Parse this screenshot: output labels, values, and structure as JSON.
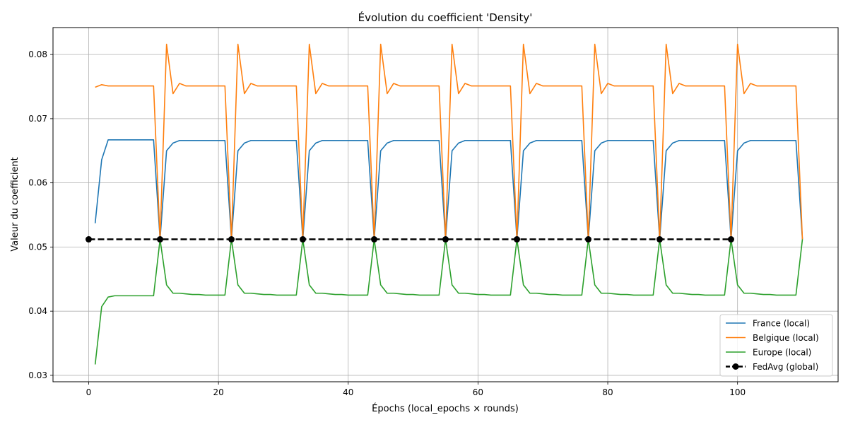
{
  "chart_data": {
    "type": "line",
    "title": "Évolution du coefficient 'Density'",
    "xlabel": "Épochs (local_epochs × rounds)",
    "ylabel": "Valeur du coefficient",
    "xlim": [
      -5.5,
      115.5
    ],
    "ylim": [
      0.029,
      0.0842
    ],
    "xticks": [
      0,
      20,
      40,
      60,
      80,
      100
    ],
    "xtick_labels": [
      "0",
      "20",
      "40",
      "60",
      "80",
      "100"
    ],
    "yticks": [
      0.03,
      0.04,
      0.05,
      0.06,
      0.07,
      0.08
    ],
    "ytick_labels": [
      "0.03",
      "0.04",
      "0.05",
      "0.06",
      "0.07",
      "0.08"
    ],
    "grid": true,
    "legend_position": "lower-right",
    "series": [
      {
        "name": "France (local)",
        "color": "#1f77b4",
        "style": "solid",
        "marker": "none",
        "x": [
          1,
          2,
          3,
          4,
          5,
          6,
          7,
          8,
          9,
          10,
          11,
          12,
          13,
          14,
          15,
          16,
          17,
          18,
          19,
          20,
          21,
          22,
          23,
          24,
          25,
          26,
          27,
          28,
          29,
          30,
          31,
          32,
          33,
          34,
          35,
          36,
          37,
          38,
          39,
          40,
          41,
          42,
          43,
          44,
          45,
          46,
          47,
          48,
          49,
          50,
          51,
          52,
          53,
          54,
          55,
          56,
          57,
          58,
          59,
          60,
          61,
          62,
          63,
          64,
          65,
          66,
          67,
          68,
          69,
          70,
          71,
          72,
          73,
          74,
          75,
          76,
          77,
          78,
          79,
          80,
          81,
          82,
          83,
          84,
          85,
          86,
          87,
          88,
          89,
          90,
          91,
          92,
          93,
          94,
          95,
          96,
          97,
          98,
          99,
          100,
          101,
          102,
          103,
          104,
          105,
          106,
          107,
          108,
          109,
          110
        ],
        "y": [
          0.0537,
          0.0636,
          0.0667,
          0.0667,
          0.0667,
          0.0667,
          0.0667,
          0.0667,
          0.0667,
          0.0667,
          0.0512,
          0.065,
          0.0662,
          0.0666,
          0.0666,
          0.0666,
          0.0666,
          0.0666,
          0.0666,
          0.0666,
          0.0666,
          0.0512,
          0.065,
          0.0662,
          0.0666,
          0.0666,
          0.0666,
          0.0666,
          0.0666,
          0.0666,
          0.0666,
          0.0666,
          0.0512,
          0.065,
          0.0662,
          0.0666,
          0.0666,
          0.0666,
          0.0666,
          0.0666,
          0.0666,
          0.0666,
          0.0666,
          0.0512,
          0.065,
          0.0662,
          0.0666,
          0.0666,
          0.0666,
          0.0666,
          0.0666,
          0.0666,
          0.0666,
          0.0666,
          0.0512,
          0.065,
          0.0662,
          0.0666,
          0.0666,
          0.0666,
          0.0666,
          0.0666,
          0.0666,
          0.0666,
          0.0666,
          0.0512,
          0.065,
          0.0662,
          0.0666,
          0.0666,
          0.0666,
          0.0666,
          0.0666,
          0.0666,
          0.0666,
          0.0666,
          0.0512,
          0.065,
          0.0662,
          0.0666,
          0.0666,
          0.0666,
          0.0666,
          0.0666,
          0.0666,
          0.0666,
          0.0666,
          0.0512,
          0.065,
          0.0662,
          0.0666,
          0.0666,
          0.0666,
          0.0666,
          0.0666,
          0.0666,
          0.0666,
          0.0666,
          0.0512,
          0.065,
          0.0662,
          0.0666,
          0.0666,
          0.0666,
          0.0666,
          0.0666,
          0.0666,
          0.0666,
          0.0666,
          0.0512
        ]
      },
      {
        "name": "Belgique (local)",
        "color": "#ff7f0e",
        "style": "solid",
        "marker": "none",
        "x": [
          1,
          2,
          3,
          4,
          5,
          6,
          7,
          8,
          9,
          10,
          11,
          12,
          13,
          14,
          15,
          16,
          17,
          18,
          19,
          20,
          21,
          22,
          23,
          24,
          25,
          26,
          27,
          28,
          29,
          30,
          31,
          32,
          33,
          34,
          35,
          36,
          37,
          38,
          39,
          40,
          41,
          42,
          43,
          44,
          45,
          46,
          47,
          48,
          49,
          50,
          51,
          52,
          53,
          54,
          55,
          56,
          57,
          58,
          59,
          60,
          61,
          62,
          63,
          64,
          65,
          66,
          67,
          68,
          69,
          70,
          71,
          72,
          73,
          74,
          75,
          76,
          77,
          78,
          79,
          80,
          81,
          82,
          83,
          84,
          85,
          86,
          87,
          88,
          89,
          90,
          91,
          92,
          93,
          94,
          95,
          96,
          97,
          98,
          99,
          100,
          101,
          102,
          103,
          104,
          105,
          106,
          107,
          108,
          109,
          110
        ],
        "y": [
          0.0749,
          0.0753,
          0.0751,
          0.0751,
          0.0751,
          0.0751,
          0.0751,
          0.0751,
          0.0751,
          0.0751,
          0.0512,
          0.0816,
          0.0739,
          0.0755,
          0.0751,
          0.0751,
          0.0751,
          0.0751,
          0.0751,
          0.0751,
          0.0751,
          0.0512,
          0.0816,
          0.0739,
          0.0755,
          0.0751,
          0.0751,
          0.0751,
          0.0751,
          0.0751,
          0.0751,
          0.0751,
          0.0512,
          0.0816,
          0.0739,
          0.0755,
          0.0751,
          0.0751,
          0.0751,
          0.0751,
          0.0751,
          0.0751,
          0.0751,
          0.0512,
          0.0816,
          0.0739,
          0.0755,
          0.0751,
          0.0751,
          0.0751,
          0.0751,
          0.0751,
          0.0751,
          0.0751,
          0.0512,
          0.0816,
          0.0739,
          0.0755,
          0.0751,
          0.0751,
          0.0751,
          0.0751,
          0.0751,
          0.0751,
          0.0751,
          0.0512,
          0.0816,
          0.0739,
          0.0755,
          0.0751,
          0.0751,
          0.0751,
          0.0751,
          0.0751,
          0.0751,
          0.0751,
          0.0512,
          0.0816,
          0.0739,
          0.0755,
          0.0751,
          0.0751,
          0.0751,
          0.0751,
          0.0751,
          0.0751,
          0.0751,
          0.0512,
          0.0816,
          0.0739,
          0.0755,
          0.0751,
          0.0751,
          0.0751,
          0.0751,
          0.0751,
          0.0751,
          0.0751,
          0.0512,
          0.0816,
          0.0739,
          0.0755,
          0.0751,
          0.0751,
          0.0751,
          0.0751,
          0.0751,
          0.0751,
          0.0751,
          0.0512
        ]
      },
      {
        "name": "Europe (local)",
        "color": "#2ca02c",
        "style": "solid",
        "marker": "none",
        "x": [
          1,
          2,
          3,
          4,
          5,
          6,
          7,
          8,
          9,
          10,
          11,
          12,
          13,
          14,
          15,
          16,
          17,
          18,
          19,
          20,
          21,
          22,
          23,
          24,
          25,
          26,
          27,
          28,
          29,
          30,
          31,
          32,
          33,
          34,
          35,
          36,
          37,
          38,
          39,
          40,
          41,
          42,
          43,
          44,
          45,
          46,
          47,
          48,
          49,
          50,
          51,
          52,
          53,
          54,
          55,
          56,
          57,
          58,
          59,
          60,
          61,
          62,
          63,
          64,
          65,
          66,
          67,
          68,
          69,
          70,
          71,
          72,
          73,
          74,
          75,
          76,
          77,
          78,
          79,
          80,
          81,
          82,
          83,
          84,
          85,
          86,
          87,
          88,
          89,
          90,
          91,
          92,
          93,
          94,
          95,
          96,
          97,
          98,
          99,
          100,
          101,
          102,
          103,
          104,
          105,
          106,
          107,
          108,
          109,
          110
        ],
        "y": [
          0.0317,
          0.0407,
          0.0422,
          0.0424,
          0.0424,
          0.0424,
          0.0424,
          0.0424,
          0.0424,
          0.0424,
          0.0512,
          0.0441,
          0.0428,
          0.0428,
          0.0427,
          0.0426,
          0.0426,
          0.0425,
          0.0425,
          0.0425,
          0.0425,
          0.0512,
          0.0441,
          0.0428,
          0.0428,
          0.0427,
          0.0426,
          0.0426,
          0.0425,
          0.0425,
          0.0425,
          0.0425,
          0.0512,
          0.0441,
          0.0428,
          0.0428,
          0.0427,
          0.0426,
          0.0426,
          0.0425,
          0.0425,
          0.0425,
          0.0425,
          0.0512,
          0.0441,
          0.0428,
          0.0428,
          0.0427,
          0.0426,
          0.0426,
          0.0425,
          0.0425,
          0.0425,
          0.0425,
          0.0512,
          0.0441,
          0.0428,
          0.0428,
          0.0427,
          0.0426,
          0.0426,
          0.0425,
          0.0425,
          0.0425,
          0.0425,
          0.0512,
          0.0441,
          0.0428,
          0.0428,
          0.0427,
          0.0426,
          0.0426,
          0.0425,
          0.0425,
          0.0425,
          0.0425,
          0.0512,
          0.0441,
          0.0428,
          0.0428,
          0.0427,
          0.0426,
          0.0426,
          0.0425,
          0.0425,
          0.0425,
          0.0425,
          0.0512,
          0.0441,
          0.0428,
          0.0428,
          0.0427,
          0.0426,
          0.0426,
          0.0425,
          0.0425,
          0.0425,
          0.0425,
          0.0512,
          0.0441,
          0.0428,
          0.0428,
          0.0427,
          0.0426,
          0.0426,
          0.0425,
          0.0425,
          0.0425,
          0.0425,
          0.0512
        ]
      },
      {
        "name": "FedAvg (global)",
        "color": "#000000",
        "style": "dashed",
        "marker": "circle",
        "x": [
          0,
          11,
          22,
          33,
          44,
          55,
          66,
          77,
          88,
          99
        ],
        "y": [
          0.0512,
          0.0512,
          0.0512,
          0.0512,
          0.0512,
          0.0512,
          0.0512,
          0.0512,
          0.0512,
          0.0512
        ]
      }
    ]
  }
}
